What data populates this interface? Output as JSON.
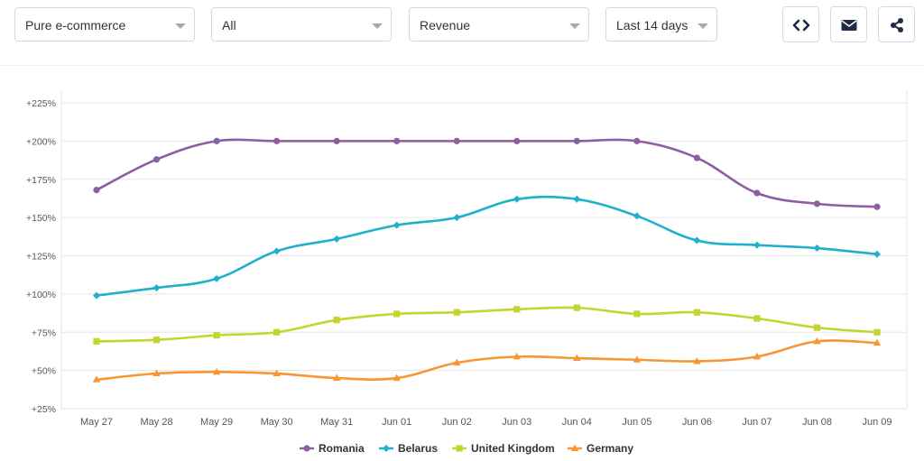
{
  "filters": {
    "shop_type": "Pure e-commerce",
    "category": "All",
    "metric": "Revenue",
    "period": "Last 14 days"
  },
  "actions": {
    "embed_icon": "code-icon",
    "email_icon": "envelope-icon",
    "share_icon": "share-icon"
  },
  "chart_data": {
    "type": "line",
    "title": "",
    "xlabel": "",
    "ylabel": "",
    "categories": [
      "May 27",
      "May 28",
      "May 29",
      "May 30",
      "May 31",
      "Jun 01",
      "Jun 02",
      "Jun 03",
      "Jun 04",
      "Jun 05",
      "Jun 06",
      "Jun 07",
      "Jun 08",
      "Jun 09"
    ],
    "y_ticks": [
      "+25%",
      "+50%",
      "+75%",
      "+100%",
      "+125%",
      "+150%",
      "+175%",
      "+200%",
      "+225%"
    ],
    "ylim": [
      25,
      225
    ],
    "grid": "horizontal",
    "legend_position": "bottom",
    "series": [
      {
        "name": "Romania",
        "color": "#8e5ea2",
        "marker": "circle",
        "values": [
          168,
          188,
          200,
          200,
          200,
          200,
          200,
          200,
          200,
          200,
          189,
          166,
          159,
          157
        ]
      },
      {
        "name": "Belarus",
        "color": "#1fb0cc",
        "marker": "diamond",
        "values": [
          99,
          104,
          110,
          128,
          136,
          145,
          150,
          162,
          162,
          151,
          135,
          132,
          130,
          126
        ]
      },
      {
        "name": "United Kingdom",
        "color": "#c3d52e",
        "marker": "square",
        "values": [
          69,
          70,
          73,
          75,
          83,
          87,
          88,
          90,
          91,
          87,
          88,
          84,
          78,
          75
        ]
      },
      {
        "name": "Germany",
        "color": "#f79635",
        "marker": "triangle",
        "values": [
          44,
          48,
          49,
          48,
          45,
          45,
          55,
          59,
          58,
          57,
          56,
          59,
          69,
          68
        ]
      }
    ]
  }
}
